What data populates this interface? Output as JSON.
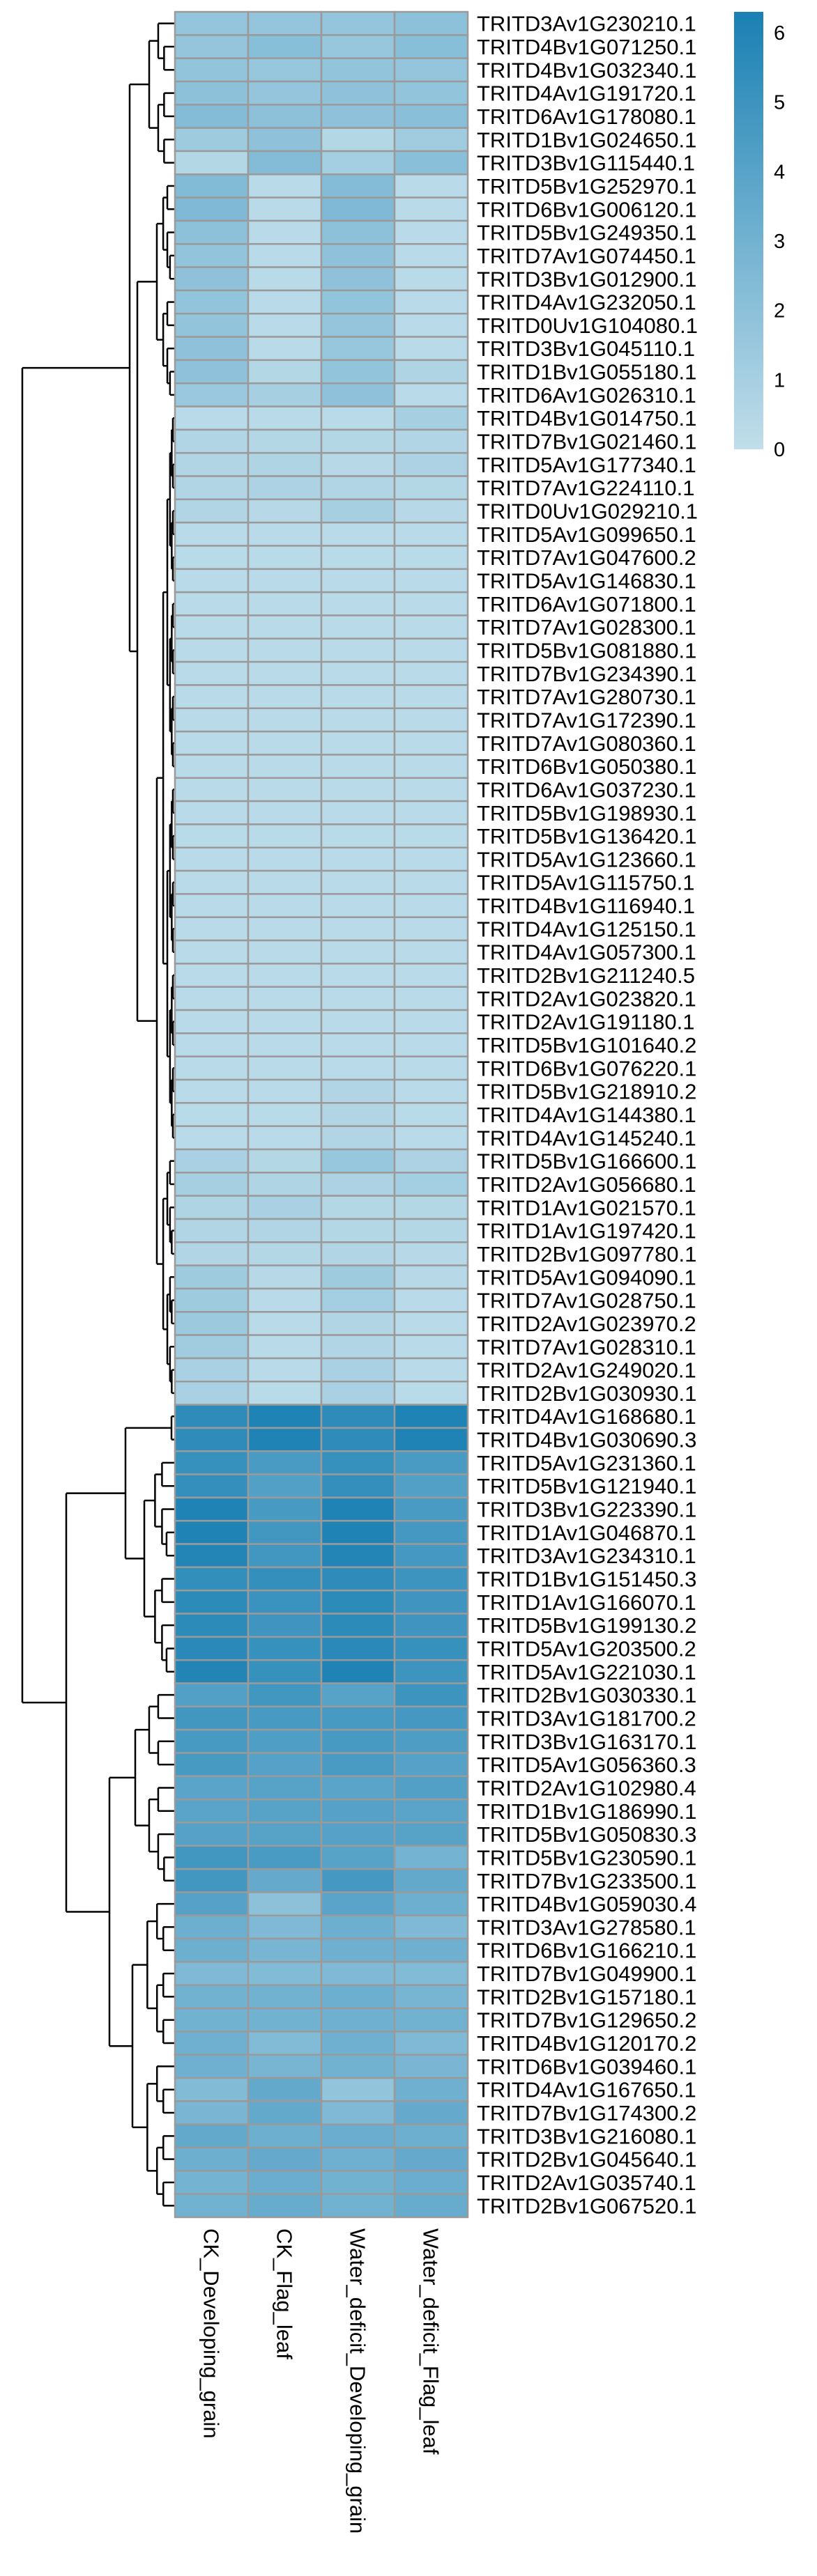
{
  "chart_data": {
    "type": "heatmap",
    "title": "",
    "columns": [
      "CK_Developing_grain",
      "CK_Flag_leaf",
      "Water_deficit_Developing_grain",
      "Water_deficit_Flag_leaf"
    ],
    "rows": [
      "TRITD3Av1G230210.1",
      "TRITD4Bv1G071250.1",
      "TRITD4Bv1G032340.1",
      "TRITD4Av1G191720.1",
      "TRITD6Av1G178080.1",
      "TRITD1Bv1G024650.1",
      "TRITD3Bv1G115440.1",
      "TRITD5Bv1G252970.1",
      "TRITD6Bv1G006120.1",
      "TRITD5Bv1G249350.1",
      "TRITD7Av1G074450.1",
      "TRITD3Bv1G012900.1",
      "TRITD4Av1G232050.1",
      "TRITD0Uv1G104080.1",
      "TRITD3Bv1G045110.1",
      "TRITD1Bv1G055180.1",
      "TRITD6Av1G026310.1",
      "TRITD4Bv1G014750.1",
      "TRITD7Bv1G021460.1",
      "TRITD5Av1G177340.1",
      "TRITD7Av1G224110.1",
      "TRITD0Uv1G029210.1",
      "TRITD5Av1G099650.1",
      "TRITD7Av1G047600.2",
      "TRITD5Av1G146830.1",
      "TRITD6Av1G071800.1",
      "TRITD7Av1G028300.1",
      "TRITD5Bv1G081880.1",
      "TRITD7Bv1G234390.1",
      "TRITD7Av1G280730.1",
      "TRITD7Av1G172390.1",
      "TRITD7Av1G080360.1",
      "TRITD6Bv1G050380.1",
      "TRITD6Av1G037230.1",
      "TRITD5Bv1G198930.1",
      "TRITD5Bv1G136420.1",
      "TRITD5Av1G123660.1",
      "TRITD5Av1G115750.1",
      "TRITD4Bv1G116940.1",
      "TRITD4Av1G125150.1",
      "TRITD4Av1G057300.1",
      "TRITD2Bv1G211240.5",
      "TRITD2Av1G023820.1",
      "TRITD2Av1G191180.1",
      "TRITD5Bv1G101640.2",
      "TRITD6Bv1G076220.1",
      "TRITD5Bv1G218910.2",
      "TRITD4Av1G144380.1",
      "TRITD4Av1G145240.1",
      "TRITD5Bv1G166600.1",
      "TRITD2Av1G056680.1",
      "TRITD1Av1G021570.1",
      "TRITD1Av1G197420.1",
      "TRITD2Bv1G097780.1",
      "TRITD5Av1G094090.1",
      "TRITD7Av1G028750.1",
      "TRITD2Av1G023970.2",
      "TRITD7Av1G028310.1",
      "TRITD2Av1G249020.1",
      "TRITD2Bv1G030930.1",
      "TRITD4Av1G168680.1",
      "TRITD4Bv1G030690.3",
      "TRITD5Av1G231360.1",
      "TRITD5Bv1G121940.1",
      "TRITD3Bv1G223390.1",
      "TRITD1Av1G046870.1",
      "TRITD3Av1G234310.1",
      "TRITD1Bv1G151450.3",
      "TRITD1Av1G166070.1",
      "TRITD5Bv1G199130.2",
      "TRITD5Av1G203500.2",
      "TRITD5Av1G221030.1",
      "TRITD2Bv1G030330.1",
      "TRITD3Av1G181700.2",
      "TRITD3Bv1G163170.1",
      "TRITD5Av1G056360.3",
      "TRITD2Av1G102980.4",
      "TRITD1Bv1G186990.1",
      "TRITD5Bv1G050830.3",
      "TRITD5Bv1G230590.1",
      "TRITD7Bv1G233500.1",
      "TRITD4Bv1G059030.4",
      "TRITD3Av1G278580.1",
      "TRITD6Bv1G166210.1",
      "TRITD7Bv1G049900.1",
      "TRITD2Bv1G157180.1",
      "TRITD7Bv1G129650.2",
      "TRITD4Bv1G120170.2",
      "TRITD6Bv1G039460.1",
      "TRITD4Av1G167650.1",
      "TRITD7Bv1G174300.2",
      "TRITD3Bv1G216080.1",
      "TRITD2Bv1G045640.1",
      "TRITD2Av1G035740.1",
      "TRITD2Bv1G067520.1"
    ],
    "values": [
      [
        1.7,
        1.7,
        1.7,
        2.0
      ],
      [
        1.7,
        2.2,
        1.6,
        2.2
      ],
      [
        1.8,
        1.6,
        1.8,
        1.7
      ],
      [
        2.0,
        1.7,
        1.9,
        1.8
      ],
      [
        2.3,
        2.0,
        1.9,
        2.1
      ],
      [
        1.3,
        1.9,
        0.5,
        1.2
      ],
      [
        0.5,
        2.3,
        1.1,
        2.1
      ],
      [
        2.4,
        0.3,
        2.3,
        0.3
      ],
      [
        2.5,
        0.3,
        2.5,
        0.3
      ],
      [
        2.0,
        0.3,
        2.0,
        0.3
      ],
      [
        1.8,
        0.3,
        1.9,
        0.3
      ],
      [
        1.9,
        0.3,
        1.9,
        0.3
      ],
      [
        1.8,
        0.3,
        1.8,
        0.3
      ],
      [
        1.8,
        0.3,
        1.7,
        0.3
      ],
      [
        1.9,
        0.3,
        1.6,
        0.3
      ],
      [
        1.9,
        0.5,
        1.8,
        0.7
      ],
      [
        1.5,
        1.0,
        1.9,
        0.3
      ],
      [
        0.3,
        0.3,
        0.3,
        1.0
      ],
      [
        0.6,
        0.5,
        0.5,
        0.6
      ],
      [
        0.6,
        0.7,
        0.4,
        0.8
      ],
      [
        0.6,
        0.8,
        0.6,
        0.5
      ],
      [
        0.6,
        0.4,
        1.0,
        0.4
      ],
      [
        0.3,
        0.3,
        0.3,
        0.3
      ],
      [
        0.3,
        0.3,
        0.3,
        0.3
      ],
      [
        0.3,
        0.3,
        0.3,
        0.3
      ],
      [
        0.3,
        0.3,
        0.3,
        0.3
      ],
      [
        0.3,
        0.3,
        0.3,
        0.3
      ],
      [
        0.3,
        0.3,
        0.3,
        0.3
      ],
      [
        0.3,
        0.3,
        0.3,
        0.3
      ],
      [
        0.3,
        0.3,
        0.3,
        0.3
      ],
      [
        0.3,
        0.3,
        0.3,
        0.3
      ],
      [
        0.3,
        0.3,
        0.3,
        0.3
      ],
      [
        0.3,
        0.3,
        0.3,
        0.3
      ],
      [
        0.3,
        0.3,
        0.3,
        0.3
      ],
      [
        0.3,
        0.3,
        0.3,
        0.3
      ],
      [
        0.3,
        0.3,
        0.3,
        0.3
      ],
      [
        0.3,
        0.3,
        0.3,
        0.3
      ],
      [
        0.3,
        0.3,
        0.3,
        0.3
      ],
      [
        0.3,
        0.3,
        0.3,
        0.3
      ],
      [
        0.3,
        0.3,
        0.3,
        0.3
      ],
      [
        0.3,
        0.3,
        0.3,
        0.3
      ],
      [
        0.3,
        0.3,
        0.3,
        0.3
      ],
      [
        0.3,
        0.3,
        0.3,
        0.3
      ],
      [
        0.3,
        0.3,
        0.3,
        0.3
      ],
      [
        0.3,
        0.3,
        0.3,
        0.3
      ],
      [
        0.3,
        0.3,
        0.3,
        0.3
      ],
      [
        0.3,
        0.3,
        0.6,
        0.3
      ],
      [
        0.3,
        0.3,
        0.6,
        0.3
      ],
      [
        0.3,
        0.3,
        0.6,
        0.3
      ],
      [
        0.9,
        0.5,
        1.6,
        0.8
      ],
      [
        1.0,
        0.7,
        0.8,
        1.1
      ],
      [
        0.7,
        0.9,
        0.5,
        0.5
      ],
      [
        0.6,
        0.6,
        0.5,
        0.5
      ],
      [
        0.6,
        0.5,
        0.6,
        0.4
      ],
      [
        1.3,
        0.4,
        1.3,
        0.4
      ],
      [
        1.3,
        0.3,
        1.1,
        0.3
      ],
      [
        1.4,
        0.3,
        0.6,
        0.3
      ],
      [
        1.2,
        0.3,
        0.6,
        0.3
      ],
      [
        0.9,
        0.3,
        0.9,
        0.3
      ],
      [
        0.9,
        0.3,
        0.9,
        0.3
      ],
      [
        5.5,
        6.1,
        5.5,
        6.1
      ],
      [
        5.5,
        6.1,
        5.5,
        6.1
      ],
      [
        5.2,
        4.5,
        5.2,
        4.5
      ],
      [
        5.3,
        4.2,
        5.3,
        4.2
      ],
      [
        6.1,
        4.6,
        6.1,
        4.5
      ],
      [
        6.1,
        4.8,
        6.1,
        4.7
      ],
      [
        6.0,
        4.8,
        6.0,
        4.7
      ],
      [
        5.4,
        5.3,
        5.5,
        5.0
      ],
      [
        5.6,
        5.1,
        5.6,
        4.9
      ],
      [
        5.6,
        4.9,
        5.6,
        4.9
      ],
      [
        5.7,
        5.2,
        5.7,
        5.2
      ],
      [
        6.0,
        5.2,
        6.1,
        5.0
      ],
      [
        4.2,
        4.8,
        4.0,
        5.0
      ],
      [
        4.8,
        4.6,
        4.6,
        4.7
      ],
      [
        4.6,
        4.3,
        4.6,
        4.4
      ],
      [
        4.6,
        4.1,
        4.5,
        4.1
      ],
      [
        3.9,
        4.0,
        3.9,
        4.2
      ],
      [
        3.9,
        4.0,
        4.1,
        3.9
      ],
      [
        4.1,
        4.0,
        4.1,
        4.0
      ],
      [
        4.8,
        4.5,
        4.0,
        2.9
      ],
      [
        4.8,
        3.5,
        4.7,
        3.6
      ],
      [
        4.1,
        2.0,
        3.9,
        3.2
      ],
      [
        3.2,
        2.5,
        3.2,
        2.5
      ],
      [
        3.2,
        2.8,
        3.1,
        3.1
      ],
      [
        2.5,
        2.4,
        2.5,
        2.4
      ],
      [
        3.0,
        3.0,
        3.2,
        2.8
      ],
      [
        3.0,
        3.0,
        3.1,
        3.0
      ],
      [
        3.1,
        2.4,
        3.1,
        2.5
      ],
      [
        3.1,
        2.8,
        3.0,
        2.7
      ],
      [
        2.4,
        3.6,
        1.8,
        3.1
      ],
      [
        2.7,
        3.6,
        2.5,
        3.5
      ],
      [
        3.6,
        3.2,
        3.3,
        3.2
      ],
      [
        3.2,
        3.5,
        3.1,
        3.5
      ],
      [
        2.9,
        3.3,
        3.0,
        3.3
      ],
      [
        3.0,
        3.4,
        3.0,
        3.4
      ]
    ],
    "legend": {
      "ticks": [
        "0",
        "1",
        "2",
        "3",
        "4",
        "5",
        "6"
      ],
      "tick_values": [
        0,
        1,
        2,
        3,
        4,
        5,
        6
      ],
      "range": [
        0,
        6.3
      ],
      "placement": "top-right"
    },
    "colors": {
      "low": "#c1deea",
      "mid": "#72b2d1",
      "high": "#1a80b3",
      "border": "#9a9a9a",
      "tree": "#000000"
    },
    "row_dendrogram": true,
    "grid": false
  }
}
